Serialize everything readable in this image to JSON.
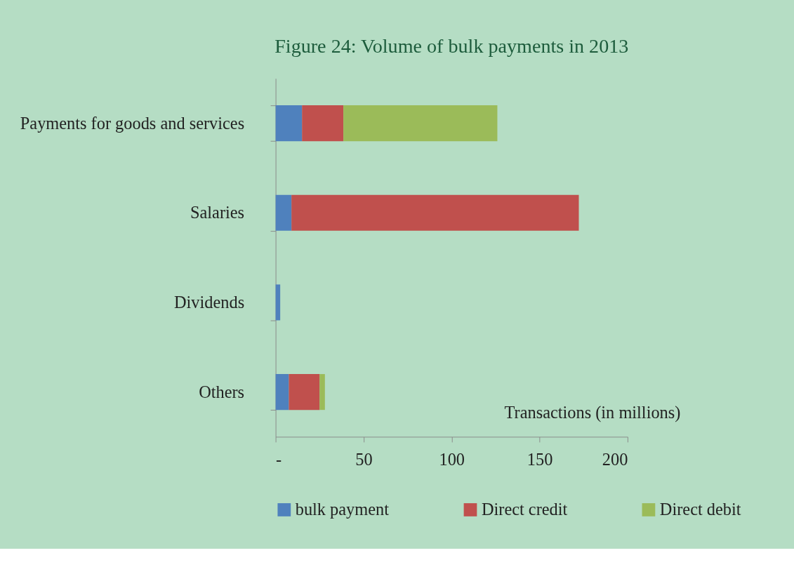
{
  "chart_data": {
    "type": "bar",
    "orientation": "horizontal",
    "stacked": true,
    "title": "Figure 24: Volume of bulk payments in 2013",
    "xlabel": "Transactions (in millions)",
    "categories": [
      "Payments for goods and services",
      "Salaries",
      "Dividends",
      "Others"
    ],
    "series": [
      {
        "name": "bulk payment",
        "color": "#4f81bd",
        "values": [
          15,
          9,
          2.6,
          7.5
        ]
      },
      {
        "name": "Direct credit",
        "color": "#c0504d",
        "values": [
          23.5,
          163.3,
          null,
          17.5
        ]
      },
      {
        "name": "Direct debit",
        "color": "#9bbb59",
        "values": [
          87.5,
          null,
          null,
          3
        ]
      }
    ],
    "xlim": [
      0,
      200
    ],
    "xticks": [
      {
        "value": 0,
        "label": "-"
      },
      50,
      100,
      150,
      200
    ],
    "grid": false,
    "legend": "bottom"
  }
}
